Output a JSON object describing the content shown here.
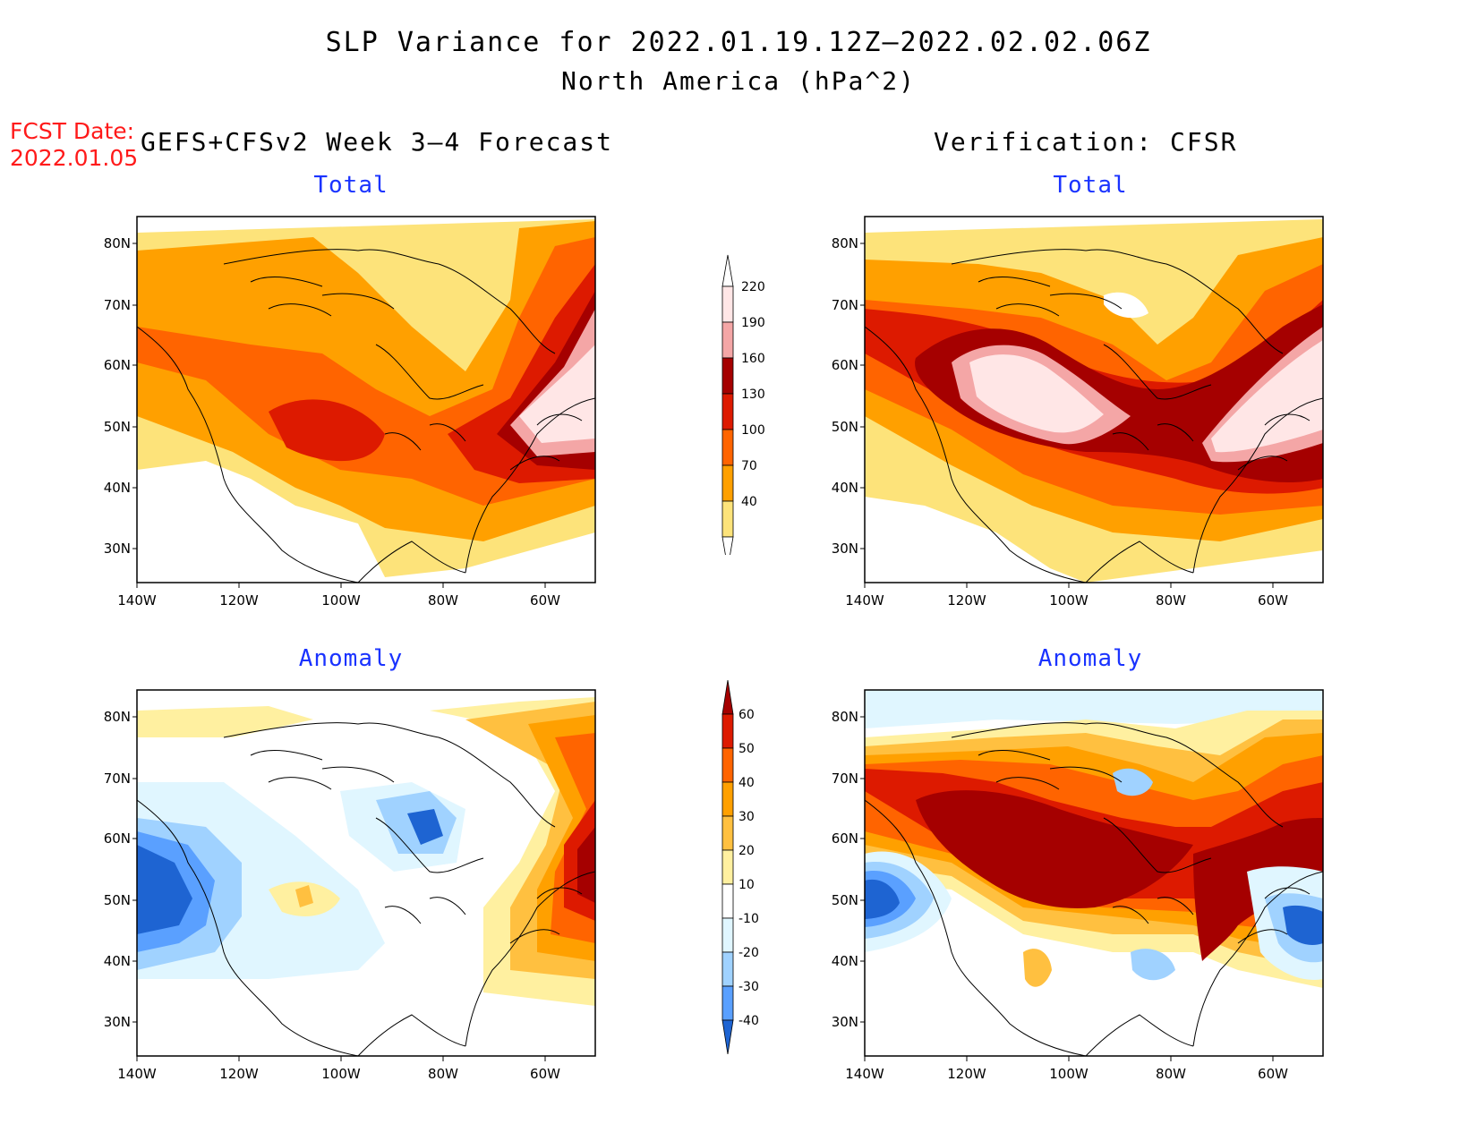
{
  "header": {
    "title_line1": "SLP Variance for 2022.01.19.12Z–2022.02.02.06Z",
    "title_line2": "North America (hPa^2)",
    "fcst_label": "FCST Date:",
    "fcst_date": "2022.01.05",
    "left_column_title": "GEFS+CFSv2 Week 3–4 Forecast",
    "right_column_title": "Verification: CFSR"
  },
  "panels": {
    "forecast_total": {
      "title": "Total"
    },
    "verify_total": {
      "title": "Total"
    },
    "forecast_anomaly": {
      "title": "Anomaly"
    },
    "verify_anomaly": {
      "title": "Anomaly"
    }
  },
  "axes": {
    "lat_labels": [
      "80N",
      "70N",
      "60N",
      "50N",
      "40N",
      "30N"
    ],
    "lon_labels": [
      "140W",
      "120W",
      "100W",
      "80W",
      "60W"
    ]
  },
  "colorbars": {
    "total": {
      "levels": [
        "220",
        "190",
        "160",
        "130",
        "100",
        "70",
        "40"
      ],
      "colors": [
        "#ffe6e6",
        "#f4a6a6",
        "#a50000",
        "#dd1a00",
        "#ff6400",
        "#ffa000",
        "#fde37a"
      ]
    },
    "anomaly": {
      "levels": [
        "60",
        "50",
        "40",
        "30",
        "20",
        "10",
        "-10",
        "-20",
        "-30",
        "-40"
      ],
      "colors": [
        "#a50000",
        "#dd1a00",
        "#ff6400",
        "#ffa000",
        "#ffc040",
        "#fff0a0",
        "#ffffff",
        "#e0f6ff",
        "#a0d2ff",
        "#5aa0ff",
        "#1e64d2"
      ]
    }
  }
}
